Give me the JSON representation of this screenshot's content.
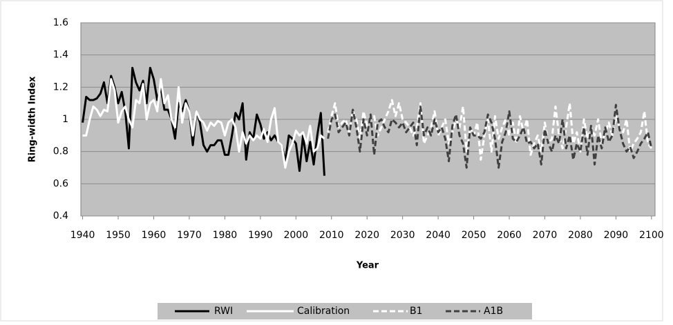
{
  "chart_data": {
    "type": "line",
    "x_label": "Year",
    "y_label": "Ring-width Index",
    "x": [
      1940,
      1941,
      1942,
      1943,
      1944,
      1945,
      1946,
      1947,
      1948,
      1949,
      1950,
      1951,
      1952,
      1953,
      1954,
      1955,
      1956,
      1957,
      1958,
      1959,
      1960,
      1961,
      1962,
      1963,
      1964,
      1965,
      1966,
      1967,
      1968,
      1969,
      1970,
      1971,
      1972,
      1973,
      1974,
      1975,
      1976,
      1977,
      1978,
      1979,
      1980,
      1981,
      1982,
      1983,
      1984,
      1985,
      1986,
      1987,
      1988,
      1989,
      1990,
      1991,
      1992,
      1993,
      1994,
      1995,
      1996,
      1997,
      1998,
      1999,
      2000,
      2001,
      2002,
      2003,
      2004,
      2005,
      2006,
      2007,
      2008,
      2009,
      2010,
      2011,
      2012,
      2013,
      2014,
      2015,
      2016,
      2017,
      2018,
      2019,
      2020,
      2021,
      2022,
      2023,
      2024,
      2025,
      2026,
      2027,
      2028,
      2029,
      2030,
      2031,
      2032,
      2033,
      2034,
      2035,
      2036,
      2037,
      2038,
      2039,
      2040,
      2041,
      2042,
      2043,
      2044,
      2045,
      2046,
      2047,
      2048,
      2049,
      2050,
      2051,
      2052,
      2053,
      2054,
      2055,
      2056,
      2057,
      2058,
      2059,
      2060,
      2061,
      2062,
      2063,
      2064,
      2065,
      2066,
      2067,
      2068,
      2069,
      2070,
      2071,
      2072,
      2073,
      2074,
      2075,
      2076,
      2077,
      2078,
      2079,
      2080,
      2081,
      2082,
      2083,
      2084,
      2085,
      2086,
      2087,
      2088,
      2089,
      2090,
      2091,
      2092,
      2093,
      2094,
      2095,
      2096,
      2097,
      2098,
      2099,
      2100
    ],
    "series": [
      {
        "name": "RWI",
        "color": "#000000",
        "dash": false,
        "values": [
          0.98,
          1.14,
          1.12,
          1.12,
          1.13,
          1.16,
          1.23,
          1.1,
          1.27,
          1.2,
          1.1,
          1.17,
          1.05,
          0.82,
          1.32,
          1.23,
          1.18,
          1.24,
          1.1,
          1.32,
          1.25,
          1.12,
          1.2,
          1.06,
          1.06,
          1.0,
          0.88,
          1.1,
          1.05,
          1.12,
          1.05,
          0.84,
          1.05,
          0.98,
          0.84,
          0.8,
          0.84,
          0.84,
          0.87,
          0.87,
          0.78,
          0.78,
          0.9,
          1.04,
          1.0,
          1.1,
          0.75,
          0.92,
          0.88,
          1.03,
          0.97,
          0.88,
          0.92,
          0.87,
          0.9,
          0.86,
          0.84,
          0.74,
          0.9,
          0.88,
          0.85,
          0.68,
          0.9,
          0.74,
          0.86,
          0.72,
          0.9,
          1.04,
          0.65,
          null,
          null,
          null,
          null,
          null,
          null,
          null,
          null,
          null,
          null,
          null,
          null,
          null,
          null,
          null,
          null,
          null,
          null,
          null,
          null,
          null,
          null,
          null,
          null,
          null,
          null,
          null,
          null,
          null,
          null,
          null,
          null,
          null,
          null,
          null,
          null,
          null,
          null,
          null,
          null,
          null,
          null,
          null,
          null,
          null,
          null,
          null,
          null,
          null,
          null,
          null,
          null,
          null,
          null,
          null,
          null,
          null,
          null,
          null,
          null,
          null,
          null,
          null,
          null,
          null,
          null,
          null,
          null,
          null,
          null,
          null,
          null,
          null,
          null,
          null,
          null,
          null,
          null,
          null,
          null,
          null,
          null,
          null,
          null,
          null,
          null,
          null,
          null,
          null,
          null,
          null,
          null
        ]
      },
      {
        "name": "Calibration",
        "color": "#ffffff",
        "dash": false,
        "values": [
          0.9,
          0.9,
          1.0,
          1.08,
          1.06,
          1.02,
          1.06,
          1.05,
          1.25,
          1.18,
          0.98,
          1.05,
          1.08,
          1.0,
          0.95,
          1.12,
          1.1,
          1.22,
          1.0,
          1.1,
          1.12,
          1.05,
          1.25,
          1.1,
          1.15,
          1.0,
          0.95,
          1.2,
          0.98,
          1.1,
          1.05,
          0.9,
          1.05,
          1.0,
          0.98,
          0.93,
          0.98,
          0.96,
          0.99,
          0.98,
          0.9,
          0.98,
          1.0,
          0.95,
          0.8,
          0.92,
          0.85,
          0.9,
          0.87,
          0.9,
          0.88,
          0.94,
          0.86,
          1.0,
          1.07,
          0.86,
          0.84,
          0.7,
          0.8,
          0.85,
          0.93,
          0.9,
          0.92,
          0.85,
          0.96,
          0.8,
          0.82,
          0.9,
          0.88,
          null,
          null,
          null,
          null,
          null,
          null,
          null,
          null,
          null,
          null,
          null,
          null,
          null,
          null,
          null,
          null,
          null,
          null,
          null,
          null,
          null,
          null,
          null,
          null,
          null,
          null,
          null,
          null,
          null,
          null,
          null,
          null,
          null,
          null,
          null,
          null,
          null,
          null,
          null,
          null,
          null,
          null,
          null,
          null,
          null,
          null,
          null,
          null,
          null,
          null,
          null,
          null,
          null,
          null,
          null,
          null,
          null,
          null,
          null,
          null,
          null,
          null,
          null,
          null,
          null,
          null,
          null,
          null,
          null,
          null,
          null,
          null,
          null,
          null,
          null,
          null,
          null,
          null,
          null,
          null,
          null,
          null,
          null,
          null,
          null,
          null,
          null,
          null,
          null,
          null,
          null,
          null
        ]
      },
      {
        "name": "B1",
        "color": "#ffffff",
        "dash": true,
        "values": [
          null,
          null,
          null,
          null,
          null,
          null,
          null,
          null,
          null,
          null,
          null,
          null,
          null,
          null,
          null,
          null,
          null,
          null,
          null,
          null,
          null,
          null,
          null,
          null,
          null,
          null,
          null,
          null,
          null,
          null,
          null,
          null,
          null,
          null,
          null,
          null,
          null,
          null,
          null,
          null,
          null,
          null,
          null,
          null,
          null,
          null,
          null,
          null,
          null,
          null,
          null,
          null,
          null,
          null,
          null,
          null,
          null,
          null,
          null,
          null,
          null,
          null,
          null,
          null,
          null,
          null,
          null,
          null,
          null,
          0.92,
          1.02,
          1.1,
          0.95,
          0.98,
          1.0,
          0.92,
          1.05,
          1.0,
          0.88,
          1.05,
          0.96,
          1.0,
          1.02,
          0.9,
          0.95,
          1.0,
          1.05,
          1.12,
          1.02,
          1.1,
          1.0,
          0.98,
          0.95,
          0.9,
          0.95,
          1.1,
          0.85,
          0.9,
          0.95,
          1.05,
          0.9,
          0.95,
          1.0,
          0.85,
          0.92,
          1.0,
          0.95,
          1.08,
          0.8,
          0.95,
          0.9,
          0.98,
          0.75,
          0.9,
          1.0,
          0.8,
          1.02,
          0.88,
          0.95,
          1.0,
          0.9,
          0.98,
          0.85,
          1.02,
          0.92,
          1.0,
          0.78,
          0.85,
          0.9,
          0.8,
          0.98,
          0.85,
          0.88,
          1.08,
          0.9,
          0.82,
          0.95,
          1.1,
          0.85,
          0.92,
          0.8,
          1.0,
          0.88,
          0.95,
          0.9,
          1.0,
          0.85,
          0.92,
          0.98,
          0.9,
          1.02,
          0.95,
          0.92,
          1.0,
          0.8,
          0.85,
          0.88,
          0.92,
          1.05,
          0.85,
          0.82
        ]
      },
      {
        "name": "A1B",
        "color": "#404040",
        "dash": true,
        "values": [
          null,
          null,
          null,
          null,
          null,
          null,
          null,
          null,
          null,
          null,
          null,
          null,
          null,
          null,
          null,
          null,
          null,
          null,
          null,
          null,
          null,
          null,
          null,
          null,
          null,
          null,
          null,
          null,
          null,
          null,
          null,
          null,
          null,
          null,
          null,
          null,
          null,
          null,
          null,
          null,
          null,
          null,
          null,
          null,
          null,
          null,
          null,
          null,
          null,
          null,
          null,
          null,
          null,
          null,
          null,
          null,
          null,
          null,
          null,
          null,
          null,
          null,
          null,
          null,
          null,
          null,
          null,
          null,
          null,
          0.88,
          1.0,
          1.03,
          0.92,
          0.95,
          0.98,
          0.9,
          1.06,
          0.95,
          0.8,
          1.0,
          0.9,
          1.03,
          0.78,
          0.98,
          1.0,
          0.95,
          0.92,
          1.0,
          0.98,
          0.95,
          0.98,
          0.92,
          0.95,
          0.98,
          0.84,
          1.08,
          0.9,
          0.95,
          0.9,
          1.0,
          0.92,
          0.95,
          0.88,
          0.74,
          0.96,
          1.03,
          0.9,
          0.85,
          0.7,
          0.95,
          0.9,
          0.9,
          0.88,
          0.92,
          1.03,
          0.98,
          0.88,
          0.7,
          0.86,
          0.92,
          1.05,
          0.88,
          0.86,
          0.9,
          0.95,
          0.85,
          0.86,
          0.82,
          0.85,
          0.72,
          0.94,
          0.85,
          0.8,
          0.9,
          0.85,
          1.0,
          0.82,
          0.9,
          0.75,
          0.85,
          0.8,
          0.95,
          0.78,
          0.96,
          0.72,
          0.9,
          0.82,
          0.95,
          0.86,
          0.9,
          1.09,
          0.94,
          0.85,
          0.8,
          0.83,
          0.76,
          0.8,
          0.85,
          0.88,
          0.92,
          0.82
        ]
      }
    ],
    "xlim": [
      1939.5,
      2101
    ],
    "xticks": [
      1940,
      1950,
      1960,
      1970,
      1980,
      1990,
      2000,
      2010,
      2020,
      2030,
      2040,
      2050,
      2060,
      2070,
      2080,
      2090,
      2100
    ],
    "ylim": [
      0.4,
      1.6
    ],
    "yticks": [
      0.4,
      0.6,
      0.8,
      1,
      1.2,
      1.4,
      1.6
    ],
    "grid": true,
    "background": "#c0c0c0",
    "legend": "bottom"
  }
}
